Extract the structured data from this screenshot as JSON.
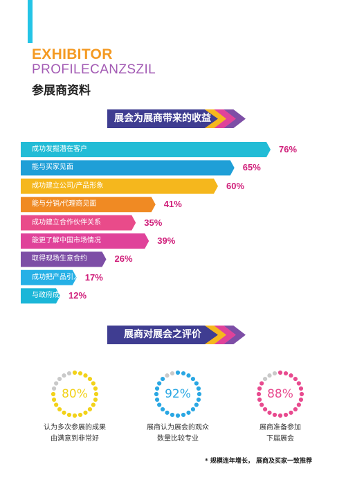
{
  "header": {
    "title_en_1": "EXHIBITOR",
    "title_en_2": "PROFILECANZSZIL",
    "title_cn": "参展商资料"
  },
  "banner1": {
    "label": "展会为展商带来的收益"
  },
  "banner2": {
    "label": "展商对展会之评价"
  },
  "chart_data": [
    {
      "type": "bar",
      "orientation": "horizontal",
      "title": "展会为展商带来的收益",
      "categories": [
        "成功发掘潜在客户",
        "能与买家见面",
        "成功建立公司/产品形象",
        "能与分销/代理商见面",
        "成功建立合作伙伴关系",
        "能更了解中国市场情况",
        "取得现场生意合约",
        "成功把产品引入中国",
        "与政府成功建立联系"
      ],
      "values": [
        76,
        65,
        60,
        41,
        35,
        39,
        26,
        17,
        12
      ],
      "value_labels": [
        "76%",
        "65%",
        "60%",
        "41%",
        "35%",
        "39%",
        "26%",
        "17%",
        "12%"
      ],
      "colors": [
        "#22bcd6",
        "#1f9fd7",
        "#f5b71d",
        "#f08a23",
        "#e94b8a",
        "#e0429a",
        "#7d4ea6",
        "#26b0e6",
        "#1bb6d8"
      ]
    },
    {
      "type": "pie",
      "title": "展商对展会之评价",
      "items": [
        {
          "value": 80,
          "label": "80%",
          "caption_1": "认为多次参展的成果",
          "caption_2": "由满意到非常好",
          "color": "#f2d21a"
        },
        {
          "value": 92,
          "label": "92%",
          "caption_1": "展商认为展会的观众",
          "caption_2": "数量比较专业",
          "color": "#2aa7e3"
        },
        {
          "value": 88,
          "label": "88%",
          "caption_1": "展商准备参加",
          "caption_2": "下届展会",
          "color": "#e84b8f"
        }
      ]
    }
  ],
  "footer": {
    "note": "* 规模连年增长， 展商及买家一致推荐"
  }
}
